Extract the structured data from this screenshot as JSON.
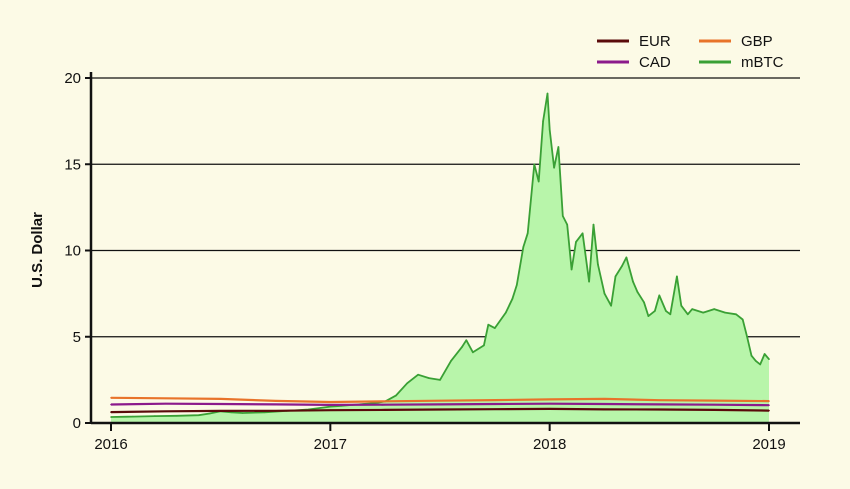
{
  "chart_data": {
    "type": "area",
    "title": "",
    "xlabel": "",
    "ylabel": "U.S. Dollar",
    "xlim": [
      2016.0,
      2019.1
    ],
    "ylim": [
      0,
      20.5
    ],
    "x_ticks": [
      2016,
      2017,
      2018,
      2019
    ],
    "x_tick_labels": [
      "2016",
      "2017",
      "2018",
      "2019"
    ],
    "y_ticks": [
      0,
      5,
      10,
      15,
      20
    ],
    "y_tick_labels": [
      "0",
      "5",
      "10",
      "15",
      "20"
    ],
    "grid": "horizontal",
    "legend_position": "top-right",
    "legend_entries": [
      "EUR",
      "GBP",
      "CAD",
      "mBTC"
    ],
    "series": [
      {
        "name": "EUR",
        "color": "#5a0a0a",
        "x": [
          2016.0,
          2016.25,
          2016.5,
          2016.75,
          2017.0,
          2017.25,
          2017.5,
          2017.75,
          2018.0,
          2018.25,
          2018.5,
          2018.75,
          2019.0
        ],
        "values": [
          0.63,
          0.68,
          0.7,
          0.71,
          0.74,
          0.76,
          0.78,
          0.8,
          0.82,
          0.79,
          0.78,
          0.76,
          0.72
        ]
      },
      {
        "name": "GBP",
        "color": "#e8732a",
        "x": [
          2016.0,
          2016.25,
          2016.5,
          2016.75,
          2017.0,
          2017.25,
          2017.5,
          2017.75,
          2018.0,
          2018.25,
          2018.5,
          2018.75,
          2019.0
        ],
        "values": [
          1.46,
          1.43,
          1.4,
          1.28,
          1.22,
          1.26,
          1.29,
          1.33,
          1.37,
          1.4,
          1.32,
          1.3,
          1.27
        ]
      },
      {
        "name": "CAD",
        "color": "#8b1a8b",
        "x": [
          2016.0,
          2016.25,
          2016.5,
          2016.75,
          2017.0,
          2017.25,
          2017.5,
          2017.75,
          2018.0,
          2018.25,
          2018.5,
          2018.75,
          2019.0
        ],
        "values": [
          1.07,
          1.12,
          1.1,
          1.08,
          1.05,
          1.06,
          1.08,
          1.1,
          1.12,
          1.1,
          1.08,
          1.06,
          1.03
        ]
      },
      {
        "name": "mBTC",
        "color": "#3aa035",
        "fill": "#b8f5aa",
        "x": [
          2016.0,
          2016.1,
          2016.2,
          2016.3,
          2016.4,
          2016.45,
          2016.5,
          2016.55,
          2016.6,
          2016.7,
          2016.8,
          2016.9,
          2017.0,
          2017.05,
          2017.1,
          2017.15,
          2017.2,
          2017.25,
          2017.3,
          2017.35,
          2017.4,
          2017.45,
          2017.5,
          2017.55,
          2017.6,
          2017.62,
          2017.65,
          2017.7,
          2017.72,
          2017.75,
          2017.8,
          2017.83,
          2017.85,
          2017.88,
          2017.9,
          2017.93,
          2017.95,
          2017.97,
          2017.99,
          2018.0,
          2018.02,
          2018.04,
          2018.06,
          2018.08,
          2018.1,
          2018.12,
          2018.15,
          2018.18,
          2018.2,
          2018.22,
          2018.25,
          2018.28,
          2018.3,
          2018.33,
          2018.35,
          2018.38,
          2018.4,
          2018.43,
          2018.45,
          2018.48,
          2018.5,
          2018.53,
          2018.55,
          2018.58,
          2018.6,
          2018.63,
          2018.65,
          2018.7,
          2018.75,
          2018.8,
          2018.85,
          2018.88,
          2018.9,
          2018.92,
          2018.94,
          2018.96,
          2018.98,
          2019.0
        ],
        "values": [
          0.35,
          0.37,
          0.4,
          0.42,
          0.45,
          0.55,
          0.68,
          0.62,
          0.58,
          0.62,
          0.7,
          0.78,
          0.95,
          1.0,
          1.05,
          1.1,
          1.15,
          1.25,
          1.6,
          2.3,
          2.8,
          2.6,
          2.5,
          3.6,
          4.4,
          4.8,
          4.1,
          4.5,
          5.7,
          5.5,
          6.4,
          7.2,
          8.0,
          10.2,
          11.0,
          15.0,
          14.0,
          17.5,
          19.1,
          17.0,
          14.8,
          16.0,
          12.0,
          11.5,
          8.9,
          10.5,
          11.0,
          8.2,
          11.5,
          9.2,
          7.5,
          6.8,
          8.5,
          9.1,
          9.6,
          8.2,
          7.6,
          7.0,
          6.2,
          6.5,
          7.4,
          6.5,
          6.3,
          8.5,
          6.8,
          6.3,
          6.6,
          6.4,
          6.6,
          6.4,
          6.3,
          6.0,
          5.0,
          3.9,
          3.6,
          3.4,
          4.0,
          3.7
        ]
      }
    ]
  }
}
